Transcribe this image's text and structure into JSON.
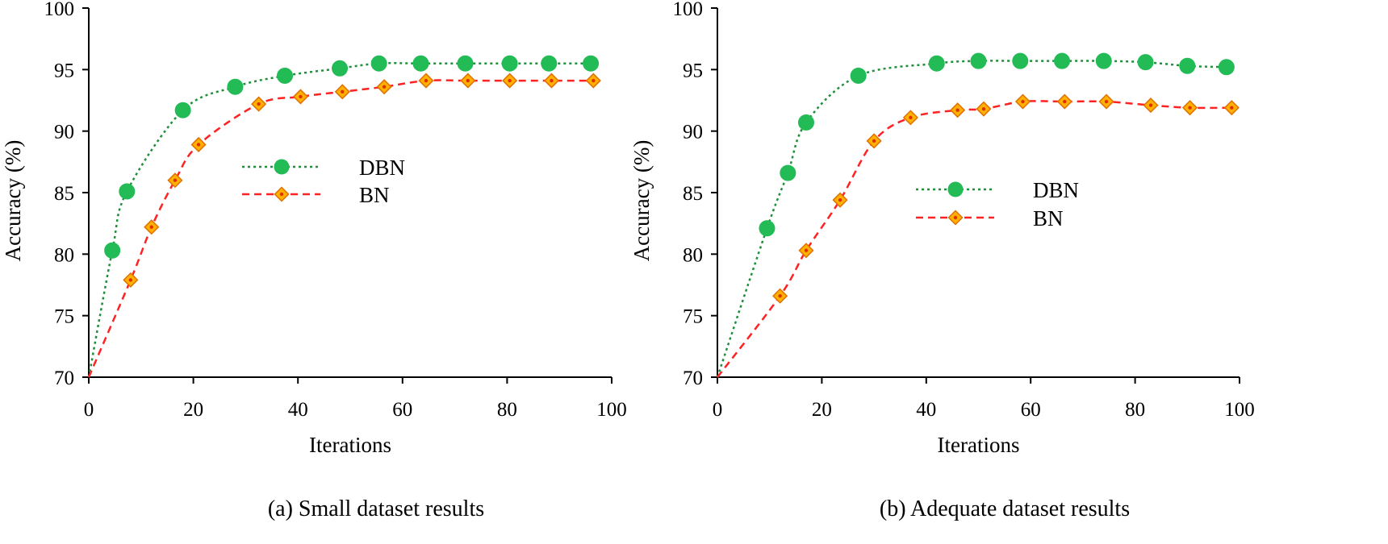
{
  "colors": {
    "dbn": "#22bb55",
    "dbn_line": "#1f8f3a",
    "bn_line": "#ff2222",
    "bn_fill": "#ffb000",
    "bn_edge": "#e07000"
  },
  "chart_data": [
    {
      "type": "line",
      "caption": "(a) Small dataset results",
      "xlabel": "Iterations",
      "ylabel": "Accuracy (%)",
      "xlim": [
        0,
        100
      ],
      "ylim": [
        70,
        100
      ],
      "xticks": [
        0,
        20,
        40,
        60,
        80,
        100
      ],
      "yticks": [
        70,
        75,
        80,
        85,
        90,
        95,
        100
      ],
      "legend_position": "center",
      "series": [
        {
          "name": "DBN",
          "marker": "circle",
          "line_style": "dotted",
          "x": [
            4.5,
            7.3,
            18,
            28,
            37.5,
            48,
            55.5,
            63.5,
            72,
            80.5,
            88,
            96
          ],
          "y": [
            80.3,
            85.1,
            91.7,
            93.6,
            94.5,
            95.1,
            95.5,
            95.5,
            95.5,
            95.5,
            95.5,
            95.5
          ]
        },
        {
          "name": "BN",
          "marker": "diamond",
          "line_style": "dashed",
          "x": [
            8,
            12,
            16.5,
            21,
            32.5,
            40.5,
            48.5,
            56.5,
            64.5,
            72.5,
            80.5,
            88.5,
            96.5
          ],
          "y": [
            77.9,
            82.2,
            86.0,
            88.9,
            92.2,
            92.8,
            93.2,
            93.6,
            94.1,
            94.1,
            94.1,
            94.1,
            94.1
          ]
        }
      ]
    },
    {
      "type": "line",
      "caption": "(b) Adequate dataset results",
      "xlabel": "Iterations",
      "ylabel": "Accuracy (%)",
      "xlim": [
        0,
        100
      ],
      "ylim": [
        70,
        100
      ],
      "xticks": [
        0,
        20,
        40,
        60,
        80,
        100
      ],
      "yticks": [
        70,
        75,
        80,
        85,
        90,
        95,
        100
      ],
      "legend_position": "center-right",
      "series": [
        {
          "name": "DBN",
          "marker": "circle",
          "line_style": "dotted",
          "x": [
            9.5,
            13.5,
            17,
            27,
            42,
            50,
            58,
            66,
            74,
            82,
            90,
            97.5
          ],
          "y": [
            82.1,
            86.6,
            90.7,
            94.5,
            95.5,
            95.7,
            95.7,
            95.7,
            95.7,
            95.6,
            95.3,
            95.2
          ]
        },
        {
          "name": "BN",
          "marker": "diamond",
          "line_style": "dashed",
          "x": [
            12,
            17,
            23.5,
            30,
            37,
            46,
            51,
            58.5,
            66.5,
            74.5,
            83,
            90.5,
            98.5
          ],
          "y": [
            76.6,
            80.3,
            84.4,
            89.2,
            91.1,
            91.7,
            91.8,
            92.4,
            92.4,
            92.4,
            92.1,
            91.9,
            91.9
          ]
        }
      ]
    }
  ]
}
